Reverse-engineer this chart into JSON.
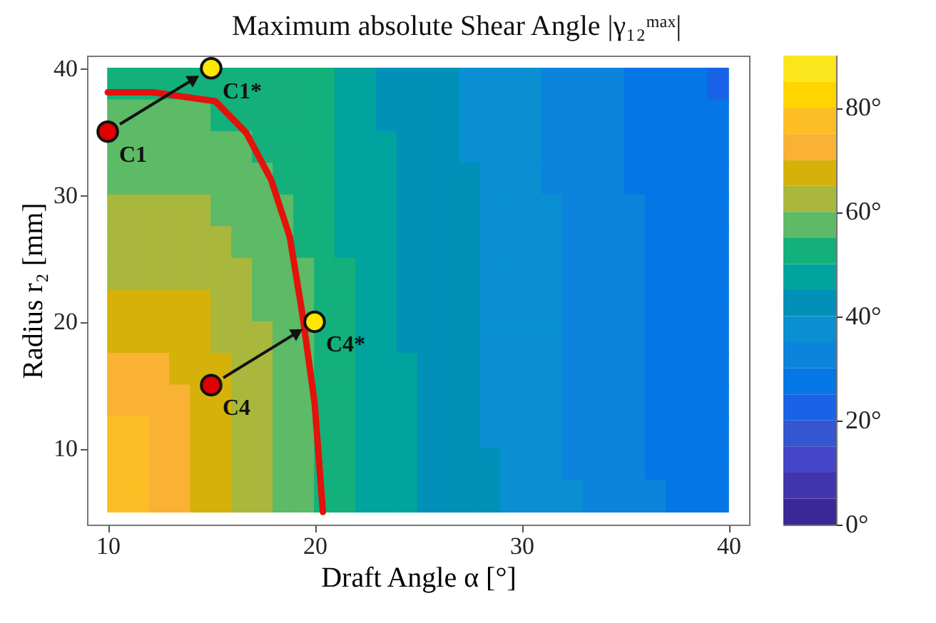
{
  "chart_data": {
    "type": "heatmap",
    "title": "Maximum absolute Shear Angle |γ₁₂ᵐᵃˣ|",
    "xlabel": "Draft Angle α [°]",
    "ylabel": "Radius r₂ [mm]",
    "x": [
      10.5,
      11.5,
      12.5,
      13.5,
      14.5,
      15.5,
      16.5,
      17.5,
      18.5,
      19.5,
      20.5,
      21.5,
      22.5,
      23.5,
      24.5,
      25.5,
      26.5,
      27.5,
      28.5,
      29.5,
      30.5,
      31.5,
      32.5,
      33.5,
      34.5,
      35.5,
      36.5,
      37.5,
      38.5,
      39.5
    ],
    "y": [
      38.75,
      36.25,
      33.75,
      31.25,
      28.75,
      26.25,
      23.75,
      21.25,
      18.75,
      16.25,
      13.75,
      11.25,
      8.75,
      6.25
    ],
    "cells": [
      [
        52.5,
        52.5,
        52.5,
        52.5,
        52.5,
        52.5,
        52.5,
        52.5,
        52.5,
        52.5,
        52.5,
        47.5,
        47.5,
        42.5,
        42.5,
        42.5,
        42.5,
        37.5,
        37.5,
        37.5,
        37.5,
        32.5,
        32.5,
        32.5,
        32.5,
        27.5,
        27.5,
        27.5,
        27.5,
        22.5
      ],
      [
        57.5,
        57.5,
        57.5,
        57.5,
        57.5,
        52.5,
        52.5,
        52.5,
        52.5,
        52.5,
        52.5,
        47.5,
        47.5,
        42.5,
        42.5,
        42.5,
        42.5,
        37.5,
        37.5,
        37.5,
        37.5,
        32.5,
        32.5,
        32.5,
        32.5,
        27.5,
        27.5,
        27.5,
        27.5,
        27.5
      ],
      [
        57.5,
        57.5,
        57.5,
        57.5,
        57.5,
        57.5,
        57.5,
        52.5,
        52.5,
        52.5,
        52.5,
        47.5,
        47.5,
        47.5,
        42.5,
        42.5,
        42.5,
        37.5,
        37.5,
        37.5,
        37.5,
        32.5,
        32.5,
        32.5,
        32.5,
        27.5,
        27.5,
        27.5,
        27.5,
        27.5
      ],
      [
        57.5,
        57.5,
        57.5,
        57.5,
        57.5,
        57.5,
        57.5,
        57.5,
        52.5,
        52.5,
        52.5,
        47.5,
        47.5,
        47.5,
        42.5,
        42.5,
        42.5,
        42.5,
        37.5,
        37.5,
        37.5,
        32.5,
        32.5,
        32.5,
        32.5,
        27.5,
        27.5,
        27.5,
        27.5,
        27.5
      ],
      [
        62.5,
        62.5,
        62.5,
        62.5,
        62.5,
        57.5,
        57.5,
        57.5,
        57.5,
        52.5,
        52.5,
        47.5,
        47.5,
        47.5,
        42.5,
        42.5,
        42.5,
        42.5,
        37.5,
        37.5,
        37.5,
        37.5,
        32.5,
        32.5,
        32.5,
        32.5,
        27.5,
        27.5,
        27.5,
        27.5
      ],
      [
        62.5,
        62.5,
        62.5,
        62.5,
        62.5,
        62.5,
        57.5,
        57.5,
        57.5,
        52.5,
        52.5,
        47.5,
        47.5,
        47.5,
        42.5,
        42.5,
        42.5,
        42.5,
        37.5,
        37.5,
        37.5,
        37.5,
        32.5,
        32.5,
        32.5,
        32.5,
        27.5,
        27.5,
        27.5,
        27.5
      ],
      [
        62.5,
        62.5,
        62.5,
        62.5,
        62.5,
        62.5,
        62.5,
        57.5,
        57.5,
        57.5,
        52.5,
        52.5,
        47.5,
        47.5,
        42.5,
        42.5,
        42.5,
        42.5,
        37.5,
        37.5,
        37.5,
        37.5,
        32.5,
        32.5,
        32.5,
        32.5,
        27.5,
        27.5,
        27.5,
        27.5
      ],
      [
        67.5,
        67.5,
        67.5,
        67.5,
        67.5,
        62.5,
        62.5,
        57.5,
        57.5,
        57.5,
        52.5,
        52.5,
        47.5,
        47.5,
        42.5,
        42.5,
        42.5,
        42.5,
        37.5,
        37.5,
        37.5,
        37.5,
        32.5,
        32.5,
        32.5,
        32.5,
        27.5,
        27.5,
        27.5,
        27.5
      ],
      [
        67.5,
        67.5,
        67.5,
        67.5,
        67.5,
        62.5,
        62.5,
        62.5,
        57.5,
        57.5,
        52.5,
        52.5,
        47.5,
        47.5,
        42.5,
        42.5,
        42.5,
        42.5,
        37.5,
        37.5,
        37.5,
        37.5,
        32.5,
        32.5,
        32.5,
        32.5,
        27.5,
        27.5,
        27.5,
        27.5
      ],
      [
        72.5,
        72.5,
        72.5,
        67.5,
        67.5,
        67.5,
        62.5,
        62.5,
        57.5,
        57.5,
        52.5,
        52.5,
        47.5,
        47.5,
        47.5,
        42.5,
        42.5,
        42.5,
        37.5,
        37.5,
        37.5,
        37.5,
        32.5,
        32.5,
        32.5,
        32.5,
        27.5,
        27.5,
        27.5,
        27.5
      ],
      [
        72.5,
        72.5,
        72.5,
        72.5,
        67.5,
        67.5,
        62.5,
        62.5,
        57.5,
        57.5,
        52.5,
        52.5,
        47.5,
        47.5,
        47.5,
        42.5,
        42.5,
        42.5,
        37.5,
        37.5,
        37.5,
        37.5,
        32.5,
        32.5,
        32.5,
        32.5,
        27.5,
        27.5,
        27.5,
        27.5
      ],
      [
        77.5,
        77.5,
        72.5,
        72.5,
        67.5,
        67.5,
        62.5,
        62.5,
        57.5,
        57.5,
        52.5,
        52.5,
        47.5,
        47.5,
        47.5,
        42.5,
        42.5,
        42.5,
        37.5,
        37.5,
        37.5,
        37.5,
        32.5,
        32.5,
        32.5,
        32.5,
        27.5,
        27.5,
        27.5,
        27.5
      ],
      [
        77.5,
        77.5,
        72.5,
        72.5,
        67.5,
        67.5,
        62.5,
        62.5,
        57.5,
        57.5,
        52.5,
        52.5,
        47.5,
        47.5,
        47.5,
        42.5,
        42.5,
        42.5,
        42.5,
        37.5,
        37.5,
        37.5,
        32.5,
        32.5,
        32.5,
        32.5,
        27.5,
        27.5,
        27.5,
        27.5
      ],
      [
        77.5,
        77.5,
        72.5,
        72.5,
        67.5,
        67.5,
        62.5,
        62.5,
        57.5,
        57.5,
        52.5,
        52.5,
        47.5,
        47.5,
        47.5,
        42.5,
        42.5,
        42.5,
        42.5,
        37.5,
        37.5,
        37.5,
        37.5,
        32.5,
        32.5,
        32.5,
        32.5,
        27.5,
        27.5,
        27.5
      ]
    ],
    "series": [
      {
        "type": "line",
        "color": "#e3120b",
        "x": [
          10,
          12.2,
          15.2,
          16.7,
          17.9,
          18.8,
          19.4,
          20.0,
          20.4
        ],
        "values": [
          38.1,
          38.1,
          37.4,
          34.9,
          31.2,
          26.7,
          20.7,
          13.6,
          5
        ]
      },
      {
        "type": "scatter",
        "color": "#e00000",
        "marker": "circle",
        "x": [
          10,
          15
        ],
        "values": [
          35,
          15
        ]
      },
      {
        "type": "scatter",
        "color": "#ffe800",
        "marker": "circle",
        "x": [
          15,
          20
        ],
        "values": [
          40,
          20
        ]
      }
    ],
    "annotations": [
      {
        "text": "C1",
        "x": 10,
        "y": 35
      },
      {
        "text": "C1*",
        "x": 15,
        "y": 40
      },
      {
        "text": "C4",
        "x": 15,
        "y": 15
      },
      {
        "text": "C4*",
        "x": 20,
        "y": 20
      }
    ],
    "xlim": [
      9,
      41
    ],
    "ylim": [
      4,
      41
    ],
    "xticks": [
      10,
      20,
      30,
      40
    ],
    "yticks": [
      10,
      20,
      30,
      40
    ],
    "clim": [
      0,
      90
    ],
    "cticks": [
      {
        "value": 0,
        "label": "0°"
      },
      {
        "value": 20,
        "label": "20°"
      },
      {
        "value": 40,
        "label": "40°"
      },
      {
        "value": 60,
        "label": "60°"
      },
      {
        "value": 80,
        "label": "80°"
      }
    ]
  }
}
